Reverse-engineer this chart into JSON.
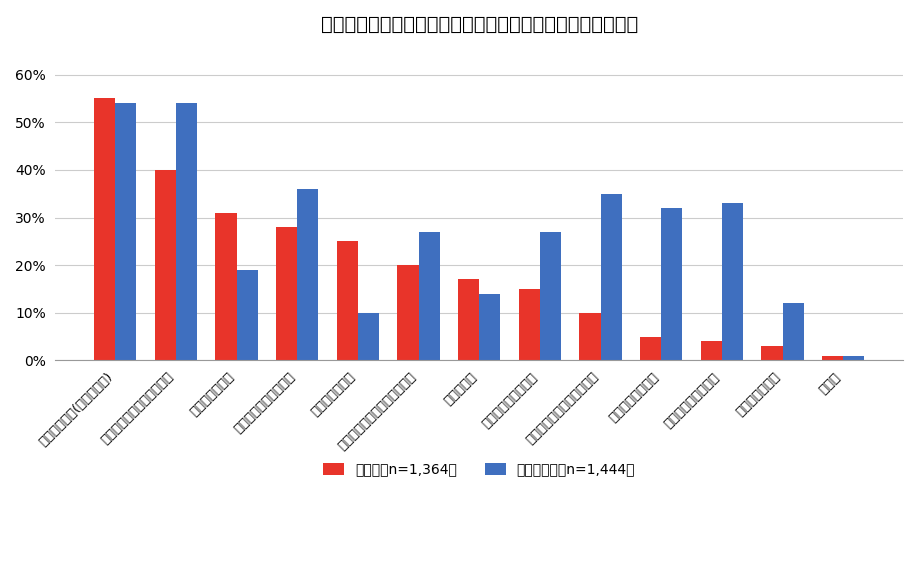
{
  "title": "あなたがお土産を選ぶときに重視するポイントは何ですか？",
  "categories": [
    "味がおいしい(おいしそう)",
    "旅行先の名産や名物である",
    "手に入りにくい",
    "旅行先の雰囲気がある",
    "デザインが好き",
    "コストパフォーマンスが高い",
    "おもしろい",
    "持ち運びがしやすい",
    "賞味期限、消費期限が長い",
    "相手が好きなもの",
    "個包装になっている",
    "高そうに見える",
    "その他"
  ],
  "values_red": [
    55,
    40,
    31,
    28,
    25,
    20,
    17,
    15,
    10,
    5,
    4,
    3,
    1
  ],
  "values_blue": [
    54,
    54,
    19,
    36,
    10,
    27,
    14,
    27,
    35,
    32,
    33,
    12,
    1
  ],
  "color_red": "#E8342A",
  "color_blue": "#3F6FBF",
  "legend_red": "自分用（n=1,364）",
  "legend_blue": "自分以外用（n=1,444）",
  "ylim": [
    0,
    65
  ],
  "yticks": [
    0,
    10,
    20,
    30,
    40,
    50,
    60
  ],
  "ylabel_format": "{}%",
  "background_color": "#ffffff",
  "grid_color": "#cccccc"
}
